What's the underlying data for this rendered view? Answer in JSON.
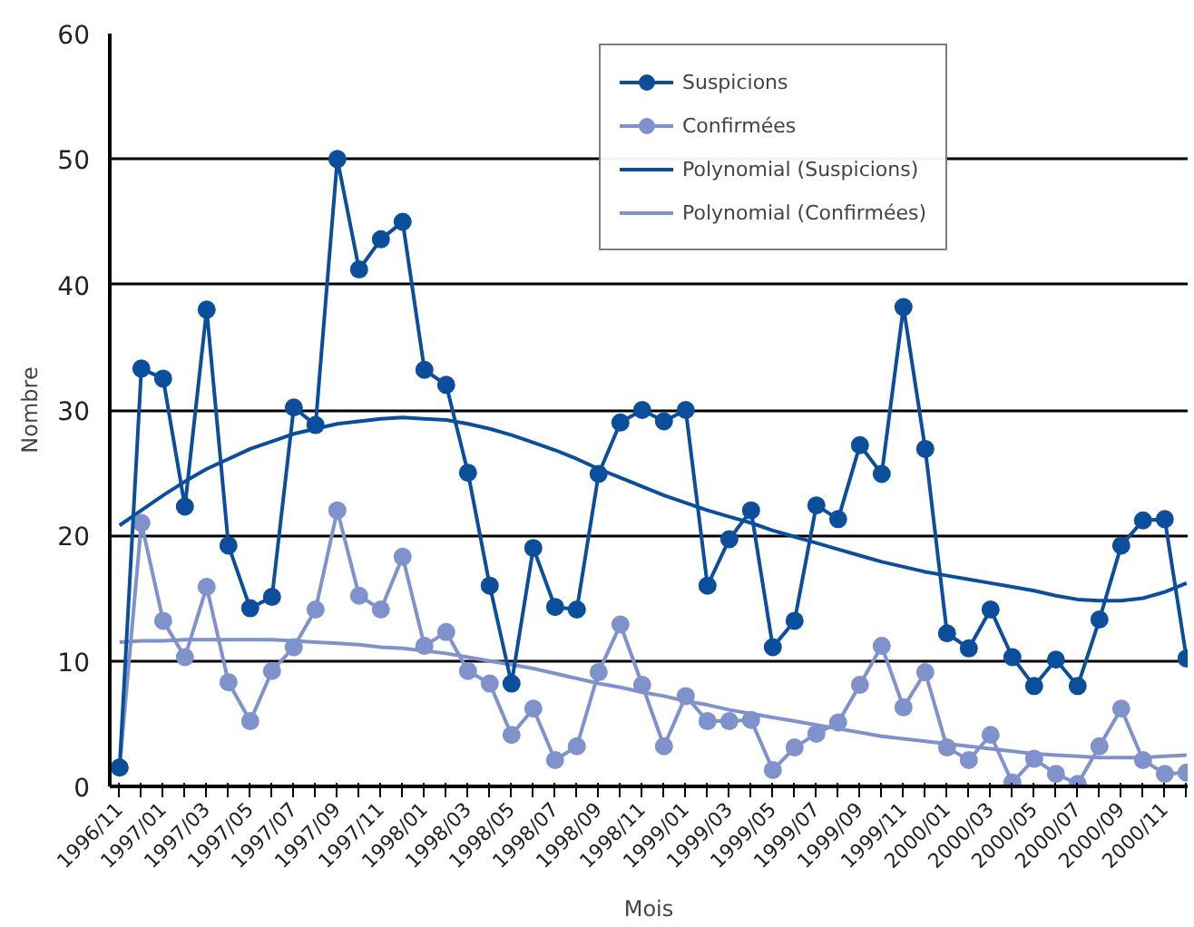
{
  "chart_data": {
    "type": "line",
    "xlabel": "Mois",
    "ylabel": "Nombre",
    "ylim": [
      0,
      60
    ],
    "yticks": [
      0,
      10,
      20,
      30,
      40,
      50,
      60
    ],
    "grid": "y",
    "legend": "top right",
    "categories": [
      "1996/11",
      null,
      "1997/01",
      null,
      "1997/03",
      null,
      "1997/05",
      null,
      "1997/07",
      null,
      "1997/09",
      null,
      "1997/11",
      null,
      "1998/01",
      null,
      "1998/03",
      null,
      "1998/05",
      null,
      "1998/07",
      null,
      "1998/09",
      null,
      "1998/11",
      null,
      "1999/01",
      null,
      "1999/03",
      null,
      "1999/05",
      null,
      "1999/07",
      null,
      "1999/09",
      null,
      "1999/11",
      null,
      "2000/01",
      null,
      "2000/03",
      null,
      "2000/05",
      null,
      "2000/07",
      null,
      "2000/09",
      null,
      "2000/11",
      null
    ],
    "series": [
      {
        "name": "Suspicions",
        "color": "#0b4f9c",
        "marker": "circle",
        "values": [
          1.5,
          33.3,
          32.5,
          22.3,
          38,
          19.2,
          14.2,
          15.1,
          30.2,
          28.8,
          50,
          41.2,
          43.6,
          45,
          33.2,
          32,
          25,
          16,
          8.2,
          19,
          14.3,
          14.1,
          24.9,
          29,
          30,
          29.1,
          30,
          16,
          19.7,
          22,
          11.1,
          13.2,
          22.4,
          21.3,
          27.2,
          24.9,
          38.2,
          26.9,
          12.2,
          11,
          14.1,
          10.3,
          8,
          10.1,
          8,
          13.3,
          19.2,
          21.2,
          21.3,
          10.2
        ]
      },
      {
        "name": "Confirmées",
        "color": "#7f92cc",
        "marker": "circle",
        "values": [
          1.5,
          21,
          13.2,
          10.3,
          15.9,
          8.3,
          5.2,
          9.2,
          11.1,
          14.1,
          22,
          15.2,
          14.1,
          18.3,
          11.2,
          12.3,
          9.2,
          8.2,
          4.1,
          6.2,
          2.1,
          3.2,
          9.1,
          12.9,
          8.1,
          3.2,
          7.2,
          5.2,
          5.2,
          5.3,
          1.3,
          3.1,
          4.2,
          5.1,
          8.1,
          11.2,
          6.3,
          9.1,
          3.1,
          2.1,
          4.1,
          0.3,
          2.2,
          1.0,
          0.2,
          3.2,
          6.2,
          2.1,
          1.0,
          1.1
        ]
      },
      {
        "name": "Polynomial (Suspicions)",
        "color": "#0b4f9c",
        "marker": "none",
        "values": [
          20.8,
          22.0,
          23.2,
          24.3,
          25.3,
          26.1,
          26.9,
          27.5,
          28.1,
          28.5,
          28.9,
          29.1,
          29.3,
          29.4,
          29.3,
          29.2,
          28.9,
          28.5,
          28.0,
          27.4,
          26.8,
          26.1,
          25.3,
          24.6,
          23.9,
          23.2,
          22.6,
          22.0,
          21.5,
          21.0,
          20.4,
          19.9,
          19.4,
          18.9,
          18.4,
          17.9,
          17.5,
          17.1,
          16.8,
          16.5,
          16.2,
          15.9,
          15.6,
          15.2,
          14.9,
          14.8,
          14.8,
          15.0,
          15.5,
          16.2
        ]
      },
      {
        "name": "Polynomial (Confirmées)",
        "color": "#7f92cc",
        "marker": "none",
        "values": [
          11.5,
          11.6,
          11.6,
          11.7,
          11.7,
          11.7,
          11.7,
          11.7,
          11.6,
          11.5,
          11.4,
          11.3,
          11.1,
          11.0,
          10.8,
          10.6,
          10.3,
          10.0,
          9.7,
          9.4,
          9.0,
          8.6,
          8.2,
          7.9,
          7.5,
          7.2,
          6.8,
          6.5,
          6.1,
          5.8,
          5.5,
          5.2,
          4.9,
          4.6,
          4.3,
          4.0,
          3.8,
          3.6,
          3.4,
          3.2,
          3.0,
          2.8,
          2.6,
          2.5,
          2.4,
          2.3,
          2.3,
          2.3,
          2.4,
          2.5
        ]
      }
    ]
  }
}
